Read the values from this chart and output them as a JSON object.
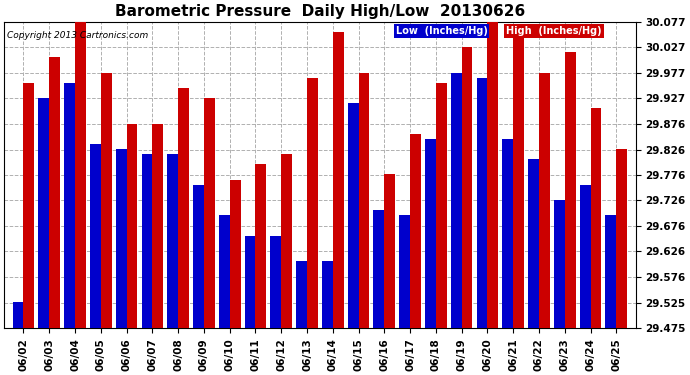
{
  "title": "Barometric Pressure  Daily High/Low  20130626",
  "copyright": "Copyright 2013 Cartronics.com",
  "legend_low": "Low  (Inches/Hg)",
  "legend_high": "High  (Inches/Hg)",
  "dates": [
    "06/02",
    "06/03",
    "06/04",
    "06/05",
    "06/06",
    "06/07",
    "06/08",
    "06/09",
    "06/10",
    "06/11",
    "06/12",
    "06/13",
    "06/14",
    "06/15",
    "06/16",
    "06/17",
    "06/18",
    "06/19",
    "06/20",
    "06/21",
    "06/22",
    "06/23",
    "06/24",
    "06/25"
  ],
  "low": [
    29.527,
    29.927,
    29.957,
    29.837,
    29.827,
    29.817,
    29.817,
    29.757,
    29.697,
    29.657,
    29.657,
    29.607,
    29.607,
    29.917,
    29.707,
    29.697,
    29.847,
    29.977,
    29.967,
    29.847,
    29.807,
    29.727,
    29.757,
    29.697
  ],
  "high": [
    29.957,
    30.007,
    30.077,
    29.977,
    29.877,
    29.877,
    29.947,
    29.927,
    29.767,
    29.797,
    29.817,
    29.967,
    30.057,
    29.977,
    29.777,
    29.857,
    29.957,
    30.027,
    30.077,
    30.057,
    29.977,
    30.017,
    29.907,
    29.827
  ],
  "ylim_low": 29.475,
  "ylim_high": 30.077,
  "yticks": [
    29.475,
    29.525,
    29.576,
    29.626,
    29.676,
    29.726,
    29.776,
    29.826,
    29.876,
    29.927,
    29.977,
    30.027,
    30.077
  ],
  "ytick_labels": [
    "29.475",
    "29.525",
    "29.576",
    "29.626",
    "29.676",
    "29.726",
    "29.776",
    "29.826",
    "29.876",
    "29.927",
    "29.977",
    "30.027",
    "30.077"
  ],
  "low_color": "#0000cc",
  "high_color": "#cc0000",
  "bg_color": "#ffffff",
  "grid_color": "#b0b0b0",
  "title_fontsize": 11,
  "tick_fontsize": 7.5,
  "bar_width": 0.42
}
